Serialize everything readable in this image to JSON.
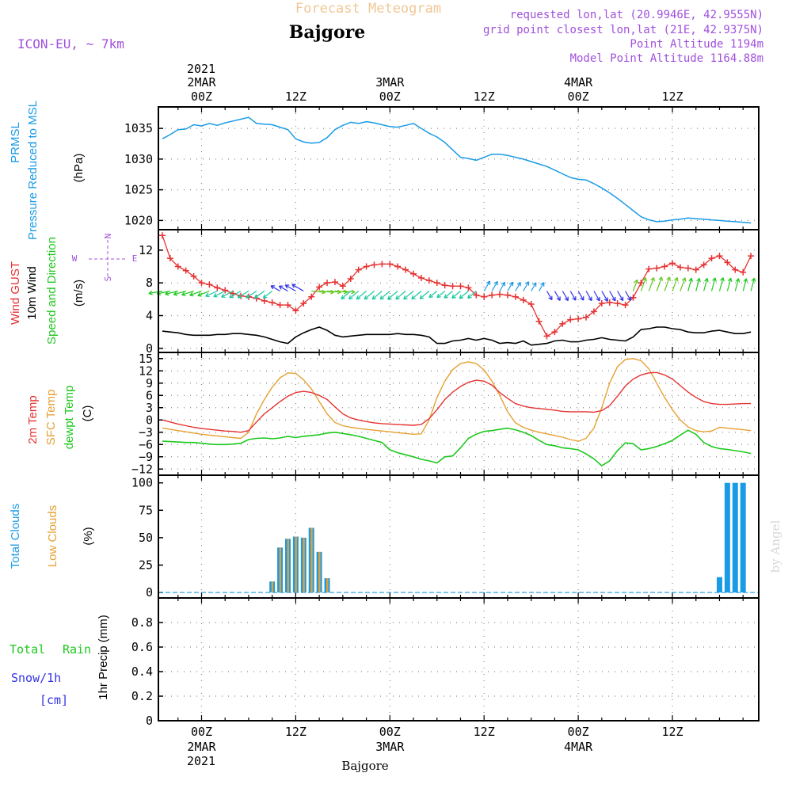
{
  "header": {
    "super_title": "Forecast Meteogram",
    "location_title": "Bajgore",
    "model": "ICON-EU, ~ 7km",
    "requested": "requested lon,lat (20.9946E, 42.9555N)",
    "grid_point": "grid point closest lon,lat (21E, 42.9375N)",
    "point_altitude": "Point Altitude 1194m",
    "model_altitude": "Model Point Altitude 1164.88m",
    "footer_name": "Bajgore",
    "watermark": "by Angel"
  },
  "time_axis": {
    "year": "2021",
    "major": [
      {
        "day": "2MAR",
        "hour": "00Z",
        "h": 0
      },
      {
        "day": "",
        "hour": "12Z",
        "h": 12
      },
      {
        "day": "3MAR",
        "hour": "00Z",
        "h": 24
      },
      {
        "day": "",
        "hour": "12Z",
        "h": 36
      },
      {
        "day": "4MAR",
        "hour": "00Z",
        "h": 48
      },
      {
        "day": "",
        "hour": "12Z",
        "h": 60
      }
    ],
    "range_hours": [
      -5.5,
      71
    ]
  },
  "panel_labels": {
    "pressure": {
      "line1": "PRMSL",
      "line2": "Pressure Reduced to MSL",
      "unit": "(hPa)"
    },
    "wind": {
      "gust": "Wind GUST",
      "wind10": "10m Wind",
      "dir": "Speed and Direction",
      "unit": "(m/s)",
      "compass_n": "N",
      "compass_s": "S",
      "compass_w": "W",
      "compass_e": "E"
    },
    "temp": {
      "t2m": "2m Temp",
      "sfc": "SFC Temp",
      "dew": "dewpt Temp",
      "unit": "(C)"
    },
    "clouds": {
      "total": "Total Clouds",
      "low": "Low Clouds",
      "unit": "(%)"
    },
    "precip": {
      "rain1": "Total",
      "rain2": "Rain",
      "snow": "Snow/1h",
      "snow_unit": "[cm]",
      "axis": "1hr Precip (mm)"
    }
  },
  "colors": {
    "pressure": "#1a9be6",
    "gust": "#e63232",
    "wind10": "#000000",
    "t2m": "#e63232",
    "sfc": "#e6a032",
    "dew": "#1ec81e",
    "total_clouds": "#1a9be6",
    "low_clouds": "#e6a032",
    "rain": "#1ec81e",
    "snow": "#3232e6",
    "header_title": "#f0c896",
    "header_meta": "#a050dc"
  },
  "chart_data": [
    {
      "type": "line",
      "name": "pressure",
      "ylabel": "(hPa)",
      "ylim": [
        1018.5,
        1038.5
      ],
      "yticks": [
        1020,
        1025,
        1030,
        1035
      ],
      "grid": true,
      "x": [
        -5,
        -4,
        -3,
        -2,
        -1,
        0,
        1,
        2,
        3,
        4,
        5,
        6,
        7,
        8,
        9,
        10,
        11,
        12,
        13,
        14,
        15,
        16,
        17,
        18,
        19,
        20,
        21,
        22,
        23,
        24,
        25,
        26,
        27,
        28,
        29,
        30,
        31,
        32,
        33,
        34,
        35,
        36,
        37,
        38,
        39,
        40,
        41,
        42,
        43,
        44,
        45,
        46,
        47,
        48,
        49,
        50,
        51,
        52,
        53,
        54,
        55,
        56,
        57,
        58,
        59,
        60,
        61,
        62,
        63,
        64,
        65,
        66,
        67,
        68,
        69,
        70
      ],
      "values": [
        1033.3,
        1034.0,
        1034.8,
        1034.9,
        1035.6,
        1035.4,
        1035.8,
        1035.5,
        1035.9,
        1036.2,
        1036.5,
        1036.8,
        1035.8,
        1035.7,
        1035.6,
        1035.2,
        1034.8,
        1033.3,
        1032.8,
        1032.6,
        1032.7,
        1033.5,
        1034.8,
        1035.5,
        1036.0,
        1035.8,
        1036.1,
        1035.9,
        1035.6,
        1035.3,
        1035.2,
        1035.5,
        1035.8,
        1035.0,
        1034.2,
        1033.6,
        1032.7,
        1031.5,
        1030.3,
        1030.1,
        1029.8,
        1030.3,
        1030.8,
        1030.8,
        1030.6,
        1030.3,
        1030.0,
        1029.6,
        1029.2,
        1028.8,
        1028.2,
        1027.6,
        1027.0,
        1026.7,
        1026.6,
        1026.0,
        1025.3,
        1024.5,
        1023.6,
        1022.6,
        1021.6,
        1020.6,
        1020.1,
        1019.8,
        1019.9,
        1020.1,
        1020.2,
        1020.4,
        1020.3,
        1020.2,
        1020.1,
        1020.0,
        1019.9,
        1019.8,
        1019.7,
        1019.6
      ]
    },
    {
      "type": "line",
      "name": "wind",
      "ylabel": "(m/s)",
      "ylim": [
        -0.5,
        14.5
      ],
      "yticks": [
        0,
        4,
        8,
        12
      ],
      "grid": true,
      "series": [
        {
          "name": "Wind GUST",
          "marker": "+",
          "x": [
            -5,
            -4,
            -3,
            -2,
            -1,
            0,
            1,
            2,
            3,
            4,
            5,
            6,
            7,
            8,
            9,
            10,
            11,
            12,
            13,
            14,
            15,
            16,
            17,
            18,
            19,
            20,
            21,
            22,
            23,
            24,
            25,
            26,
            27,
            28,
            29,
            30,
            31,
            32,
            33,
            34,
            35,
            36,
            37,
            38,
            39,
            40,
            41,
            42,
            43,
            44,
            45,
            46,
            47,
            48,
            49,
            50,
            51,
            52,
            53,
            54,
            55,
            56,
            57,
            58,
            59,
            60,
            61,
            62,
            63,
            64,
            65,
            66,
            67,
            68,
            69,
            70
          ],
          "values": [
            13.8,
            11.0,
            10.0,
            9.5,
            8.8,
            8.0,
            7.8,
            7.4,
            7.1,
            6.7,
            6.4,
            6.3,
            6.1,
            5.8,
            5.6,
            5.3,
            5.3,
            4.6,
            5.5,
            6.3,
            7.5,
            8.0,
            8.1,
            7.6,
            8.5,
            9.6,
            10.0,
            10.2,
            10.3,
            10.3,
            10.0,
            9.6,
            9.1,
            8.6,
            8.3,
            8.0,
            7.7,
            7.6,
            7.6,
            7.4,
            6.5,
            6.3,
            6.5,
            6.6,
            6.5,
            6.3,
            5.9,
            5.4,
            3.3,
            1.5,
            2.0,
            3.0,
            3.5,
            3.6,
            3.8,
            4.5,
            5.5,
            5.6,
            5.5,
            5.3,
            6.2,
            8.0,
            9.7,
            9.8,
            10.0,
            10.4,
            9.9,
            9.8,
            9.6,
            10.2,
            11.0,
            11.3,
            10.5,
            9.6,
            9.3,
            11.3
          ]
        },
        {
          "name": "10m Wind",
          "x": [
            -5,
            -4,
            -3,
            -2,
            -1,
            0,
            1,
            2,
            3,
            4,
            5,
            6,
            7,
            8,
            9,
            10,
            11,
            12,
            13,
            14,
            15,
            16,
            17,
            18,
            19,
            20,
            21,
            22,
            23,
            24,
            25,
            26,
            27,
            28,
            29,
            30,
            31,
            32,
            33,
            34,
            35,
            36,
            37,
            38,
            39,
            40,
            41,
            42,
            43,
            44,
            45,
            46,
            47,
            48,
            49,
            50,
            51,
            52,
            53,
            54,
            55,
            56,
            57,
            58,
            59,
            60,
            61,
            62,
            63,
            64,
            65,
            66,
            67,
            68,
            69,
            70
          ],
          "values": [
            2.1,
            2.0,
            1.9,
            1.7,
            1.6,
            1.6,
            1.6,
            1.7,
            1.7,
            1.8,
            1.8,
            1.7,
            1.6,
            1.4,
            1.1,
            0.8,
            0.6,
            1.4,
            1.9,
            2.3,
            2.6,
            2.2,
            1.6,
            1.4,
            1.5,
            1.6,
            1.7,
            1.7,
            1.7,
            1.7,
            1.8,
            1.7,
            1.7,
            1.6,
            1.4,
            0.6,
            0.6,
            0.9,
            1.0,
            1.2,
            1.0,
            1.2,
            1.0,
            0.6,
            0.7,
            0.6,
            0.9,
            0.4,
            0.5,
            0.6,
            0.9,
            1.0,
            0.8,
            0.8,
            1.0,
            1.1,
            1.3,
            1.1,
            1.0,
            0.9,
            1.4,
            2.3,
            2.4,
            2.6,
            2.6,
            2.4,
            2.3,
            2.0,
            1.9,
            1.9,
            2.1,
            2.2,
            2.0,
            1.8,
            1.8,
            2.0
          ]
        }
      ]
    },
    {
      "type": "line",
      "name": "temperature",
      "ylabel": "(C)",
      "ylim": [
        -13.5,
        16.5
      ],
      "yticks": [
        -12,
        -9,
        -6,
        -3,
        0,
        3,
        6,
        9,
        12,
        15
      ],
      "grid": true,
      "series": [
        {
          "name": "2m Temp",
          "x": [
            -5,
            -4,
            -3,
            -2,
            -1,
            0,
            1,
            2,
            3,
            4,
            5,
            6,
            7,
            8,
            9,
            10,
            11,
            12,
            13,
            14,
            15,
            16,
            17,
            18,
            19,
            20,
            21,
            22,
            23,
            24,
            25,
            26,
            27,
            28,
            29,
            30,
            31,
            32,
            33,
            34,
            35,
            36,
            37,
            38,
            39,
            40,
            41,
            42,
            43,
            44,
            45,
            46,
            47,
            48,
            49,
            50,
            51,
            52,
            53,
            54,
            55,
            56,
            57,
            58,
            59,
            60,
            61,
            62,
            63,
            64,
            65,
            66,
            67,
            68,
            69,
            70
          ],
          "values": [
            0.0,
            -0.5,
            -1.0,
            -1.4,
            -1.8,
            -2.1,
            -2.3,
            -2.5,
            -2.7,
            -2.8,
            -3.0,
            -2.6,
            -0.5,
            1.5,
            3.0,
            4.5,
            5.8,
            6.7,
            7.0,
            6.7,
            6.0,
            5.0,
            3.2,
            1.5,
            0.5,
            0.0,
            -0.4,
            -0.7,
            -0.9,
            -1.0,
            -1.1,
            -1.2,
            -1.3,
            -1.1,
            0.3,
            2.5,
            5.0,
            6.8,
            8.2,
            9.2,
            9.7,
            9.5,
            8.5,
            6.7,
            5.3,
            4.0,
            3.4,
            3.0,
            2.8,
            2.6,
            2.4,
            2.1,
            2.0,
            2.0,
            2.0,
            1.9,
            2.3,
            3.5,
            5.8,
            8.3,
            10.0,
            11.0,
            11.5,
            11.6,
            11.0,
            10.0,
            8.4,
            6.8,
            5.5,
            4.5,
            4.0,
            3.8,
            3.8,
            3.9,
            4.0,
            4.0
          ]
        },
        {
          "name": "SFC Temp",
          "x": [
            -5,
            -4,
            -3,
            -2,
            -1,
            0,
            1,
            2,
            3,
            4,
            5,
            6,
            7,
            8,
            9,
            10,
            11,
            12,
            13,
            14,
            15,
            16,
            17,
            18,
            19,
            20,
            21,
            22,
            23,
            24,
            25,
            26,
            27,
            28,
            29,
            30,
            31,
            32,
            33,
            34,
            35,
            36,
            37,
            38,
            39,
            40,
            41,
            42,
            43,
            44,
            45,
            46,
            47,
            48,
            49,
            50,
            51,
            52,
            53,
            54,
            55,
            56,
            57,
            58,
            59,
            60,
            61,
            62,
            63,
            64,
            65,
            66,
            67,
            68,
            69,
            70
          ],
          "values": [
            -2.0,
            -2.3,
            -2.6,
            -2.9,
            -3.2,
            -3.5,
            -3.7,
            -3.9,
            -4.1,
            -4.3,
            -4.5,
            -3.0,
            1.5,
            5.0,
            8.0,
            10.3,
            11.5,
            11.4,
            9.8,
            7.6,
            4.5,
            1.5,
            -0.6,
            -1.4,
            -1.8,
            -2.1,
            -2.3,
            -2.5,
            -2.7,
            -2.9,
            -3.1,
            -3.3,
            -3.5,
            -3.4,
            0.0,
            5.5,
            9.5,
            12.3,
            13.8,
            14.2,
            13.8,
            12.2,
            9.5,
            6.0,
            2.0,
            -0.7,
            -1.8,
            -2.5,
            -3.0,
            -3.4,
            -3.8,
            -4.2,
            -4.8,
            -5.2,
            -4.5,
            -2.0,
            3.0,
            9.0,
            13.0,
            14.8,
            15.0,
            14.5,
            12.5,
            9.0,
            5.5,
            2.5,
            0.0,
            -1.7,
            -2.6,
            -2.9,
            -2.7,
            -1.8,
            -2.0,
            -2.2,
            -2.4,
            -2.6
          ]
        },
        {
          "name": "dewpt Temp",
          "x": [
            -5,
            -4,
            -3,
            -2,
            -1,
            0,
            1,
            2,
            3,
            4,
            5,
            6,
            7,
            8,
            9,
            10,
            11,
            12,
            13,
            14,
            15,
            16,
            17,
            18,
            19,
            20,
            21,
            22,
            23,
            24,
            25,
            26,
            27,
            28,
            29,
            30,
            31,
            32,
            33,
            34,
            35,
            36,
            37,
            38,
            39,
            40,
            41,
            42,
            43,
            44,
            45,
            46,
            47,
            48,
            49,
            50,
            51,
            52,
            53,
            54,
            55,
            56,
            57,
            58,
            59,
            60,
            61,
            62,
            63,
            64,
            65,
            66,
            67,
            68,
            69,
            70
          ],
          "values": [
            -5.2,
            -5.3,
            -5.4,
            -5.5,
            -5.5,
            -5.7,
            -5.9,
            -6.0,
            -6.0,
            -5.9,
            -5.7,
            -4.8,
            -4.5,
            -4.4,
            -4.6,
            -4.4,
            -4.0,
            -4.3,
            -4.0,
            -3.8,
            -3.6,
            -3.2,
            -3.0,
            -3.3,
            -3.6,
            -4.0,
            -4.5,
            -5.0,
            -5.5,
            -7.3,
            -8.0,
            -8.5,
            -9.0,
            -9.6,
            -10.0,
            -10.5,
            -9.0,
            -8.8,
            -6.8,
            -4.5,
            -3.5,
            -2.8,
            -2.6,
            -2.3,
            -2.0,
            -2.4,
            -3.0,
            -3.8,
            -5.0,
            -6.0,
            -6.3,
            -6.8,
            -7.0,
            -7.3,
            -8.3,
            -9.5,
            -11.2,
            -10.0,
            -7.5,
            -5.6,
            -5.8,
            -7.3,
            -7.0,
            -6.5,
            -5.8,
            -5.0,
            -3.7,
            -2.5,
            -3.5,
            -5.5,
            -6.5,
            -7.0,
            -7.2,
            -7.5,
            -7.8,
            -8.2
          ]
        }
      ]
    },
    {
      "type": "bar",
      "name": "clouds",
      "ylabel": "(%)",
      "ylim": [
        -5,
        107
      ],
      "yticks": [
        0,
        25,
        50,
        75,
        100
      ],
      "grid": false,
      "series": [
        {
          "name": "Total Clouds",
          "x": [
            9,
            10,
            11,
            12,
            13,
            14,
            15,
            16,
            66,
            67,
            68,
            69
          ],
          "values": [
            10,
            41,
            49,
            51,
            50,
            59,
            37,
            13,
            14,
            100,
            100,
            100
          ]
        },
        {
          "name": "Low Clouds",
          "x": [
            9,
            10,
            11,
            12,
            13,
            14,
            15,
            16
          ],
          "values": [
            10,
            41,
            49,
            51,
            50,
            59,
            37,
            13
          ]
        }
      ]
    },
    {
      "type": "line",
      "name": "precipitation",
      "ylabel": "1hr Precip (mm)",
      "ylim": [
        0,
        1.0
      ],
      "yticks": [
        0,
        0.2,
        0.4,
        0.6,
        0.8
      ],
      "grid": true,
      "series": [
        {
          "name": "Total Rain",
          "x": [],
          "values": []
        },
        {
          "name": "Snow/1h",
          "x": [],
          "values": []
        }
      ]
    }
  ]
}
